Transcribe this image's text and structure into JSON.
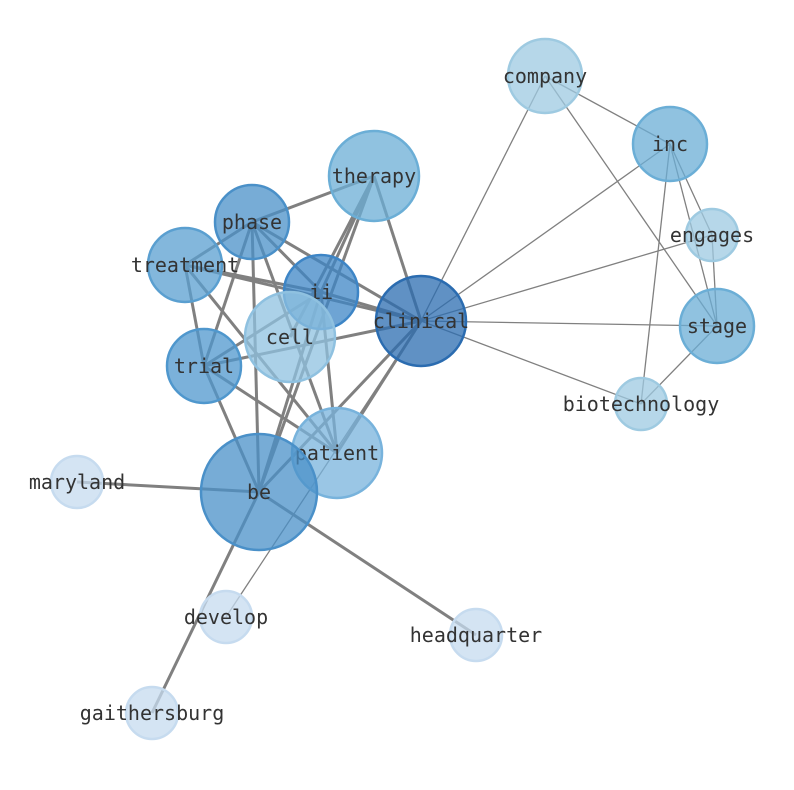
{
  "nodes": [
    {
      "id": "company",
      "color": "#9ecae1",
      "size": "m"
    },
    {
      "id": "inc",
      "color": "#6baed6",
      "size": "m"
    },
    {
      "id": "engages",
      "color": "#9ecae1",
      "size": "s"
    },
    {
      "id": "stage",
      "color": "#6baed6",
      "size": "m"
    },
    {
      "id": "biotechnology",
      "color": "#9ecae1",
      "size": "s"
    },
    {
      "id": "clinical",
      "color": "#2b6cb0",
      "size": "l"
    },
    {
      "id": "therapy",
      "color": "#6baed6",
      "size": "l"
    },
    {
      "id": "phase",
      "color": "#4a90c8",
      "size": "m"
    },
    {
      "id": "treatment",
      "color": "#5a9fd0",
      "size": "m"
    },
    {
      "id": "ii",
      "color": "#3d85c6",
      "size": "m"
    },
    {
      "id": "cell",
      "color": "#8fc1e0",
      "size": "l"
    },
    {
      "id": "trial",
      "color": "#4f97cd",
      "size": "m"
    },
    {
      "id": "patient",
      "color": "#78b3dc",
      "size": "l"
    },
    {
      "id": "be",
      "color": "#4a90c8",
      "size": "xl"
    },
    {
      "id": "maryland",
      "color": "#c6dbef",
      "size": "s"
    },
    {
      "id": "develop",
      "color": "#c6dbef",
      "size": "s"
    },
    {
      "id": "headquarter",
      "color": "#c6dbef",
      "size": "s"
    },
    {
      "id": "gaithersburg",
      "color": "#c6dbef",
      "size": "s"
    }
  ],
  "edges": [
    [
      "company",
      "clinical",
      1
    ],
    [
      "company",
      "inc",
      1
    ],
    [
      "company",
      "stage",
      1
    ],
    [
      "inc",
      "clinical",
      1
    ],
    [
      "inc",
      "engages",
      1
    ],
    [
      "inc",
      "stage",
      1
    ],
    [
      "inc",
      "biotechnology",
      1
    ],
    [
      "engages",
      "clinical",
      1
    ],
    [
      "engages",
      "stage",
      1
    ],
    [
      "stage",
      "clinical",
      1
    ],
    [
      "stage",
      "biotechnology",
      1
    ],
    [
      "biotechnology",
      "clinical",
      1
    ],
    [
      "develop",
      "clinical",
      1
    ],
    [
      "phase",
      "therapy",
      3
    ],
    [
      "phase",
      "treatment",
      3
    ],
    [
      "phase",
      "ii",
      3
    ],
    [
      "phase",
      "clinical",
      3
    ],
    [
      "phase",
      "trial",
      3
    ],
    [
      "phase",
      "be",
      3
    ],
    [
      "phase",
      "patient",
      3
    ],
    [
      "treatment",
      "ii",
      3
    ],
    [
      "treatment",
      "clinical",
      3
    ],
    [
      "treatment",
      "trial",
      3
    ],
    [
      "treatment",
      "patient",
      3
    ],
    [
      "therapy",
      "ii",
      3
    ],
    [
      "therapy",
      "cell",
      3
    ],
    [
      "therapy",
      "clinical",
      3
    ],
    [
      "therapy",
      "be",
      3
    ],
    [
      "ii",
      "clinical",
      3
    ],
    [
      "ii",
      "trial",
      3
    ],
    [
      "ii",
      "be",
      3
    ],
    [
      "ii",
      "patient",
      3
    ],
    [
      "trial",
      "clinical",
      3
    ],
    [
      "trial",
      "be",
      3
    ],
    [
      "trial",
      "patient",
      3
    ],
    [
      "clinical",
      "be",
      3
    ],
    [
      "clinical",
      "patient",
      3
    ],
    [
      "be",
      "maryland",
      3
    ],
    [
      "be",
      "headquarter",
      3
    ],
    [
      "be",
      "gaithersburg",
      3
    ]
  ],
  "edge_color": "#808080"
}
